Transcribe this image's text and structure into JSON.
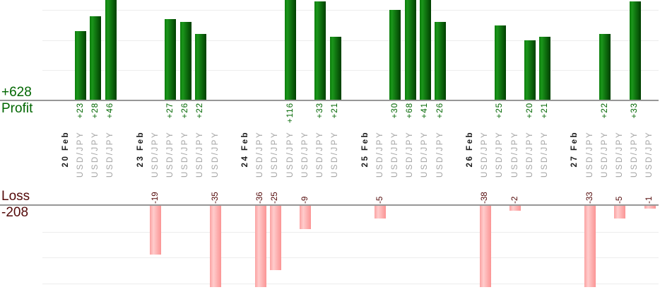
{
  "chart_data": {
    "type": "bar",
    "orientation": "vertical",
    "title": "",
    "xlabel": "",
    "ylabel": "",
    "grid": true,
    "profit_series_label": "Profit",
    "profit_total": "+628",
    "loss_series_label": "Loss",
    "loss_total": "-208",
    "column_label": "USD/JPY",
    "gridline_step": 10,
    "groups": [
      {
        "date": "20 Feb",
        "columns": [
          {
            "label": "USD/JPY",
            "value": 23
          },
          {
            "label": "USD/JPY",
            "value": 28
          },
          {
            "label": "USD/JPY",
            "value": 46
          }
        ]
      },
      {
        "date": "23 Feb",
        "columns": [
          {
            "label": "USD/JPY",
            "value": -19
          },
          {
            "label": "USD/JPY",
            "value": 27
          },
          {
            "label": "USD/JPY",
            "value": 26
          },
          {
            "label": "USD/JPY",
            "value": 22
          },
          {
            "label": "USD/JPY",
            "value": -35
          }
        ]
      },
      {
        "date": "24 Feb",
        "columns": [
          {
            "label": "USD/JPY",
            "value": -36
          },
          {
            "label": "USD/JPY",
            "value": -25
          },
          {
            "label": "USD/JPY",
            "value": 116
          },
          {
            "label": "USD/JPY",
            "value": -9
          },
          {
            "label": "USD/JPY",
            "value": 33
          },
          {
            "label": "USD/JPY",
            "value": 21
          }
        ]
      },
      {
        "date": "25 Feb",
        "columns": [
          {
            "label": "USD/JPY",
            "value": -5
          },
          {
            "label": "USD/JPY",
            "value": 30
          },
          {
            "label": "USD/JPY",
            "value": 68
          },
          {
            "label": "USD/JPY",
            "value": 41
          },
          {
            "label": "USD/JPY",
            "value": 26
          }
        ]
      },
      {
        "date": "26 Feb",
        "columns": [
          {
            "label": "USD/JPY",
            "value": -38
          },
          {
            "label": "USD/JPY",
            "value": 25
          },
          {
            "label": "USD/JPY",
            "value": -2
          },
          {
            "label": "USD/JPY",
            "value": 20
          },
          {
            "label": "USD/JPY",
            "value": 21
          }
        ]
      },
      {
        "date": "27 Feb",
        "columns": [
          {
            "label": "USD/JPY",
            "value": -33
          },
          {
            "label": "USD/JPY",
            "value": 22
          },
          {
            "label": "USD/JPY",
            "value": -5
          },
          {
            "label": "USD/JPY",
            "value": 33
          },
          {
            "label": "USD/JPY",
            "value": -1
          }
        ]
      }
    ],
    "colors": {
      "profit_text": "#006600",
      "loss_text": "#520808",
      "date_text": "#1a1a1a",
      "pair_text": "#a3a3a3",
      "axis_line": "#979797",
      "gridline": "#ededed",
      "profit_bar_gradient": [
        "#0a7c0a",
        "#1b961b",
        "#003f00"
      ],
      "loss_bar_gradient": [
        "#fba1a1",
        "#ffcccc",
        "#fb9494"
      ]
    }
  }
}
